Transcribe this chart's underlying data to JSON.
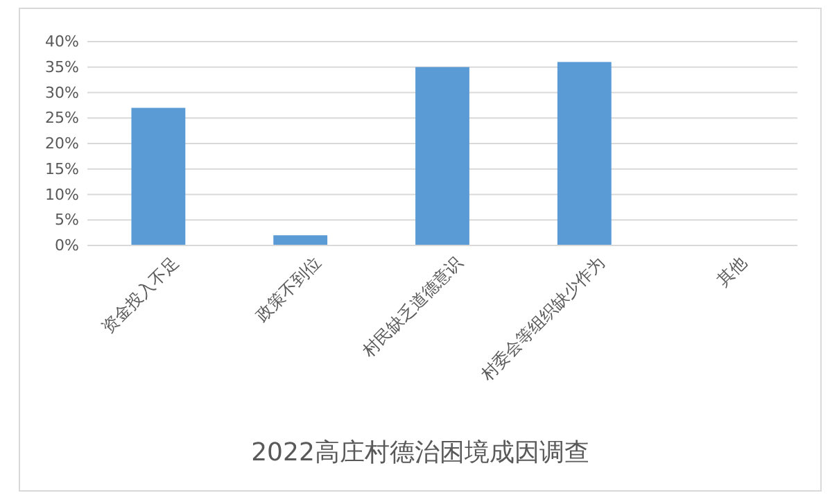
{
  "chart_data": {
    "type": "bar",
    "title": "2022高庄村德治困境成因调查",
    "categories": [
      "资金投入不足",
      "政策不到位",
      "村民缺乏道德意识",
      "村委会等组织缺少作为",
      "其他"
    ],
    "values": [
      27,
      2,
      35,
      36,
      0
    ],
    "color": "#5b9bd5",
    "ylim": [
      0,
      40
    ],
    "yticks": [
      {
        "value": 0,
        "label": "0%"
      },
      {
        "value": 5,
        "label": "5%"
      },
      {
        "value": 10,
        "label": "10%"
      },
      {
        "value": 15,
        "label": "15%"
      },
      {
        "value": 20,
        "label": "20%"
      },
      {
        "value": 25,
        "label": "25%"
      },
      {
        "value": 30,
        "label": "30%"
      },
      {
        "value": 35,
        "label": "35%"
      },
      {
        "value": 40,
        "label": "40%"
      }
    ],
    "grid": "y"
  }
}
